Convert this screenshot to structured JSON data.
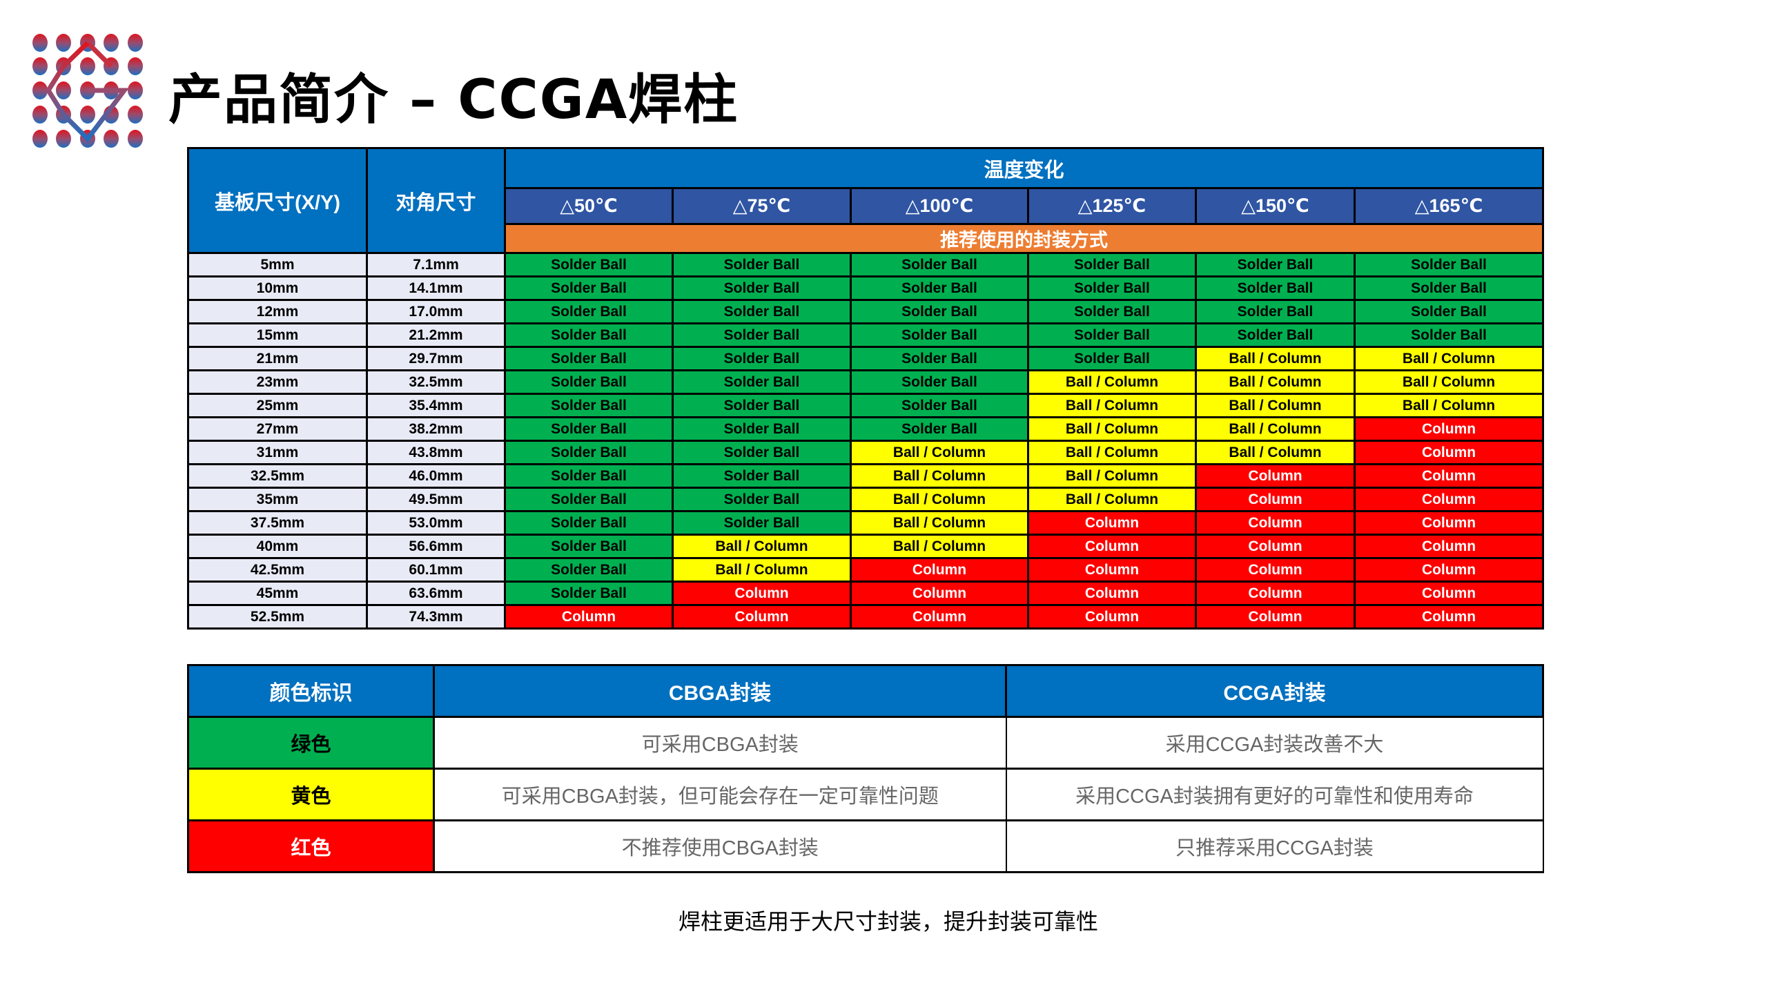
{
  "title": "产品简介 – CCGA焊柱",
  "colors": {
    "green": "#00B050",
    "yellow": "#FFFF00",
    "red": "#FF0000",
    "blue": "#0070C0",
    "temp_blue": "#2F55A3",
    "orange": "#ED7D31"
  },
  "table": {
    "col_substrate": "基板尺寸(X/Y)",
    "col_diagonal": "对角尺寸",
    "temp_group": "温度变化",
    "temps": [
      "△50℃",
      "△75℃",
      "△100℃",
      "△125℃",
      "△150℃",
      "△165℃"
    ],
    "recommend_label": "推荐使用的封装方式",
    "rows": [
      {
        "size": "5mm",
        "diag": "7.1mm",
        "cells": [
          "Solder Ball",
          "Solder Ball",
          "Solder Ball",
          "Solder Ball",
          "Solder Ball",
          "Solder Ball"
        ]
      },
      {
        "size": "10mm",
        "diag": "14.1mm",
        "cells": [
          "Solder Ball",
          "Solder Ball",
          "Solder Ball",
          "Solder Ball",
          "Solder Ball",
          "Solder Ball"
        ]
      },
      {
        "size": "12mm",
        "diag": "17.0mm",
        "cells": [
          "Solder Ball",
          "Solder Ball",
          "Solder Ball",
          "Solder Ball",
          "Solder Ball",
          "Solder Ball"
        ]
      },
      {
        "size": "15mm",
        "diag": "21.2mm",
        "cells": [
          "Solder Ball",
          "Solder Ball",
          "Solder Ball",
          "Solder Ball",
          "Solder Ball",
          "Solder Ball"
        ]
      },
      {
        "size": "21mm",
        "diag": "29.7mm",
        "cells": [
          "Solder Ball",
          "Solder Ball",
          "Solder Ball",
          "Solder Ball",
          "Ball / Column",
          "Ball / Column"
        ]
      },
      {
        "size": "23mm",
        "diag": "32.5mm",
        "cells": [
          "Solder Ball",
          "Solder Ball",
          "Solder Ball",
          "Ball / Column",
          "Ball / Column",
          "Ball / Column"
        ]
      },
      {
        "size": "25mm",
        "diag": "35.4mm",
        "cells": [
          "Solder Ball",
          "Solder Ball",
          "Solder Ball",
          "Ball / Column",
          "Ball / Column",
          "Ball / Column"
        ]
      },
      {
        "size": "27mm",
        "diag": "38.2mm",
        "cells": [
          "Solder Ball",
          "Solder Ball",
          "Solder Ball",
          "Ball / Column",
          "Ball / Column",
          "Column"
        ]
      },
      {
        "size": "31mm",
        "diag": "43.8mm",
        "cells": [
          "Solder Ball",
          "Solder Ball",
          "Ball / Column",
          "Ball / Column",
          "Ball / Column",
          "Column"
        ]
      },
      {
        "size": "32.5mm",
        "diag": "46.0mm",
        "cells": [
          "Solder Ball",
          "Solder Ball",
          "Ball / Column",
          "Ball / Column",
          "Column",
          "Column"
        ]
      },
      {
        "size": "35mm",
        "diag": "49.5mm",
        "cells": [
          "Solder Ball",
          "Solder Ball",
          "Ball / Column",
          "Ball / Column",
          "Column",
          "Column"
        ]
      },
      {
        "size": "37.5mm",
        "diag": "53.0mm",
        "cells": [
          "Solder Ball",
          "Solder Ball",
          "Ball / Column",
          "Column",
          "Column",
          "Column"
        ]
      },
      {
        "size": "40mm",
        "diag": "56.6mm",
        "cells": [
          "Solder Ball",
          "Ball / Column",
          "Ball / Column",
          "Column",
          "Column",
          "Column"
        ]
      },
      {
        "size": "42.5mm",
        "diag": "60.1mm",
        "cells": [
          "Solder Ball",
          "Ball / Column",
          "Column",
          "Column",
          "Column",
          "Column"
        ]
      },
      {
        "size": "45mm",
        "diag": "63.6mm",
        "cells": [
          "Solder Ball",
          "Column",
          "Column",
          "Column",
          "Column",
          "Column"
        ]
      },
      {
        "size": "52.5mm",
        "diag": "74.3mm",
        "cells": [
          "Column",
          "Column",
          "Column",
          "Column",
          "Column",
          "Column"
        ]
      }
    ]
  },
  "legend": {
    "col_color": "颜色标识",
    "col_cbga": "CBGA封装",
    "col_ccga": "CCGA封装",
    "rows": [
      {
        "label": "绿色",
        "cbga": "可采用CBGA封装",
        "ccga": "采用CCGA封装改善不大"
      },
      {
        "label": "黄色",
        "cbga": "可采用CBGA封装，但可能会存在一定可靠性问题",
        "ccga": "采用CCGA封装拥有更好的可靠性和使用寿命"
      },
      {
        "label": "红色",
        "cbga": "不推荐使用CBGA封装",
        "ccga": "只推荐采用CCGA封装"
      }
    ]
  },
  "footer": "焊柱更适用于大尺寸封装，提升封装可靠性"
}
